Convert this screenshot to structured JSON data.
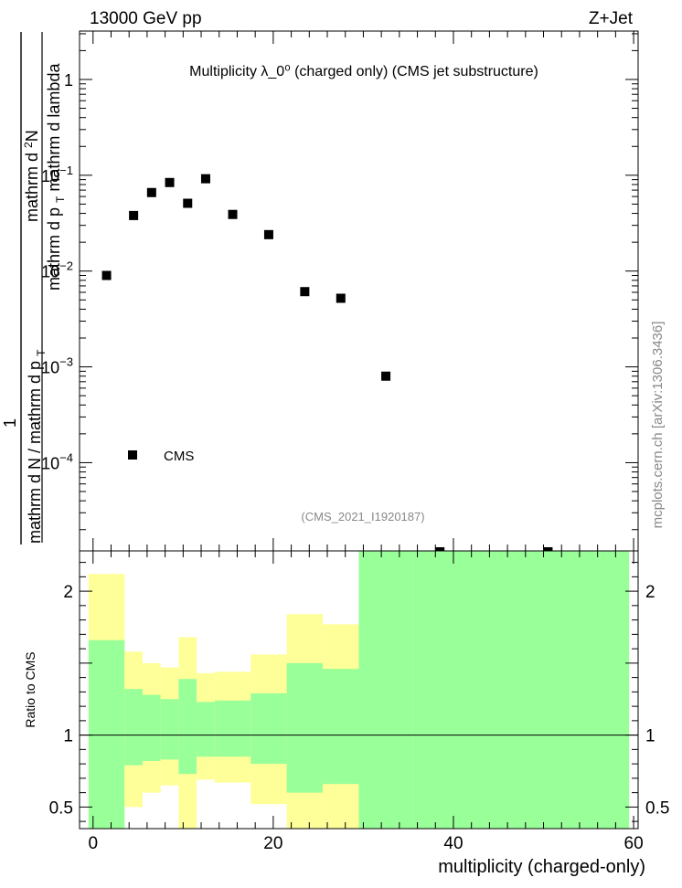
{
  "header": {
    "energy_label": "13000 GeV pp",
    "process_label": "Z+Jet",
    "watermark": "mcplots.cern.ch [arXiv:1306.3436]",
    "analysis_id": "(CMS_2021_I1920187)"
  },
  "chart_data": [
    {
      "type": "scatter",
      "panel": "main",
      "title": "Multiplicity  λ_0⁰ (charged only) (CMS jet substructure)",
      "ylabel": "1 / mathrm d N / mathrm d p_T mathrm d²N / mathrm d p_T mathrm d lambda",
      "ylabel_parts": {
        "numer_top": "mathrm d",
        "numer_sup": "2",
        "numer_rest": "N",
        "denom_part1": "mathrm d p",
        "denom_sub": "T",
        "denom_part2": "mathrm d lambda",
        "frac_one": "1",
        "frac_den_a": "mathrm d N / mathrm d p",
        "frac_den_sub": "T"
      },
      "yscale": "log",
      "ylim": [
        1.2e-05,
        3.2
      ],
      "xlim": [
        -1.5,
        60.5
      ],
      "yticks": [
        {
          "value": 1,
          "label": "1"
        },
        {
          "value": 0.1,
          "label": "10",
          "exp": "−1"
        },
        {
          "value": 0.01,
          "label": "10",
          "exp": "−2"
        },
        {
          "value": 0.001,
          "label": "10",
          "exp": "−3"
        },
        {
          "value": 0.0001,
          "label": "10",
          "exp": "−4"
        }
      ],
      "legend": {
        "entry": "CMS",
        "placement": "bottom-left"
      },
      "series": [
        {
          "name": "CMS",
          "marker": "square",
          "color": "#000000",
          "points": [
            {
              "x": 1.5,
              "y": 0.009
            },
            {
              "x": 4.5,
              "y": 0.038
            },
            {
              "x": 6.5,
              "y": 0.066
            },
            {
              "x": 8.5,
              "y": 0.084
            },
            {
              "x": 10.5,
              "y": 0.051
            },
            {
              "x": 12.5,
              "y": 0.092
            },
            {
              "x": 15.5,
              "y": 0.039
            },
            {
              "x": 19.5,
              "y": 0.024
            },
            {
              "x": 23.5,
              "y": 0.0061
            },
            {
              "x": 27.5,
              "y": 0.0052
            },
            {
              "x": 32.5,
              "y": 0.0008
            }
          ]
        }
      ],
      "offscale_markers_x": [
        38.5,
        50.5
      ]
    },
    {
      "type": "area",
      "panel": "ratio",
      "ylabel": "Ratio to CMS",
      "xlabel": "multiplicity (charged-only)",
      "xlim": [
        -1.5,
        60.5
      ],
      "ylim": [
        0.35,
        2.28
      ],
      "xticks": [
        0,
        20,
        40,
        60
      ],
      "yticks": [
        0.5,
        1,
        2
      ],
      "reference_line": 1,
      "colors": {
        "inner_band": "#99ff99",
        "outer_band": "#ffff99"
      },
      "bands": [
        {
          "x0": -0.5,
          "x1": 3.5,
          "inner": [
            0.35,
            1.66
          ],
          "outer": [
            0.35,
            2.12
          ]
        },
        {
          "x0": 3.5,
          "x1": 5.5,
          "inner": [
            0.79,
            1.32
          ],
          "outer": [
            0.5,
            1.58
          ]
        },
        {
          "x0": 5.5,
          "x1": 7.5,
          "inner": [
            0.82,
            1.28
          ],
          "outer": [
            0.6,
            1.5
          ]
        },
        {
          "x0": 7.5,
          "x1": 9.5,
          "inner": [
            0.83,
            1.25
          ],
          "outer": [
            0.65,
            1.47
          ]
        },
        {
          "x0": 9.5,
          "x1": 11.5,
          "inner": [
            0.73,
            1.39
          ],
          "outer": [
            0.35,
            1.68
          ]
        },
        {
          "x0": 11.5,
          "x1": 13.5,
          "inner": [
            0.85,
            1.23
          ],
          "outer": [
            0.69,
            1.43
          ]
        },
        {
          "x0": 13.5,
          "x1": 17.5,
          "inner": [
            0.85,
            1.24
          ],
          "outer": [
            0.67,
            1.44
          ]
        },
        {
          "x0": 17.5,
          "x1": 21.5,
          "inner": [
            0.8,
            1.29
          ],
          "outer": [
            0.52,
            1.56
          ]
        },
        {
          "x0": 21.5,
          "x1": 25.5,
          "inner": [
            0.6,
            1.5
          ],
          "outer": [
            0.35,
            1.84
          ]
        },
        {
          "x0": 25.5,
          "x1": 29.5,
          "inner": [
            0.66,
            1.46
          ],
          "outer": [
            0.35,
            1.77
          ]
        },
        {
          "x0": 29.5,
          "x1": 35.5,
          "inner": [
            0.35,
            2.28
          ],
          "outer": [
            0.35,
            2.28
          ]
        },
        {
          "x0": 35.5,
          "x1": 59.5,
          "inner": [
            0.35,
            2.28
          ],
          "outer": [
            0.35,
            2.28
          ]
        }
      ]
    }
  ]
}
